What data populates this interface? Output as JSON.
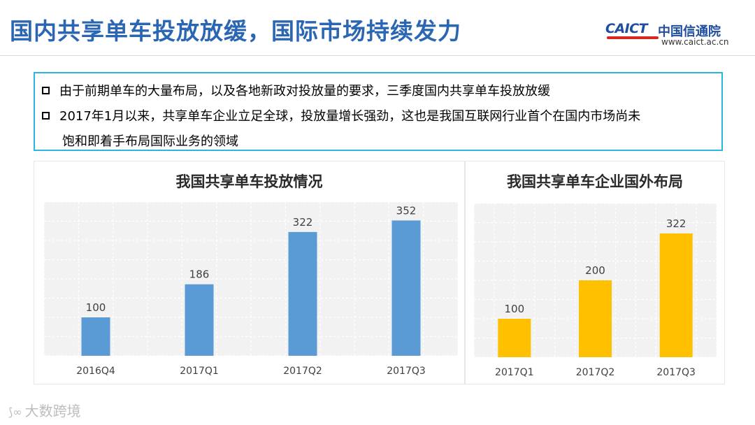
{
  "header": {
    "title": "国内共享单车投放放缓，国际市场持续发力",
    "logo_text": "CAICT",
    "logo_cn": "中国信通院",
    "logo_url": "www.caict.ac.cn"
  },
  "bullets": [
    {
      "line1": "由于前期单车的大量布局，以及各地新政对投放量的要求，三季度国内共享单车投放放缓"
    },
    {
      "line1": "2017年1月以来，共享单车企业立足全球，投放量增长强劲，这也是我国互联网行业首个在国内市场尚未",
      "line2": "饱和即着手布局国际业务的领域"
    }
  ],
  "watermark": "大数跨境",
  "colors": {
    "blue_bar": "#5b9bd5",
    "gold_bar": "#ffc000",
    "title_blue": "#2a66b3",
    "box_border": "#29b6e4"
  },
  "chart_data": [
    {
      "type": "bar",
      "title": "我国共享单车投放情况",
      "categories": [
        "2016Q4",
        "2017Q1",
        "2017Q2",
        "2017Q3"
      ],
      "values": [
        100,
        186,
        322,
        352
      ],
      "ylim": [
        0,
        400
      ],
      "grid": true,
      "color": "#5b9bd5"
    },
    {
      "type": "bar",
      "title": "我国共享单车企业国外布局",
      "categories": [
        "2017Q1",
        "2017Q2",
        "2017Q3"
      ],
      "values": [
        100,
        200,
        322
      ],
      "ylim": [
        0,
        400
      ],
      "grid": true,
      "color": "#ffc000"
    }
  ]
}
